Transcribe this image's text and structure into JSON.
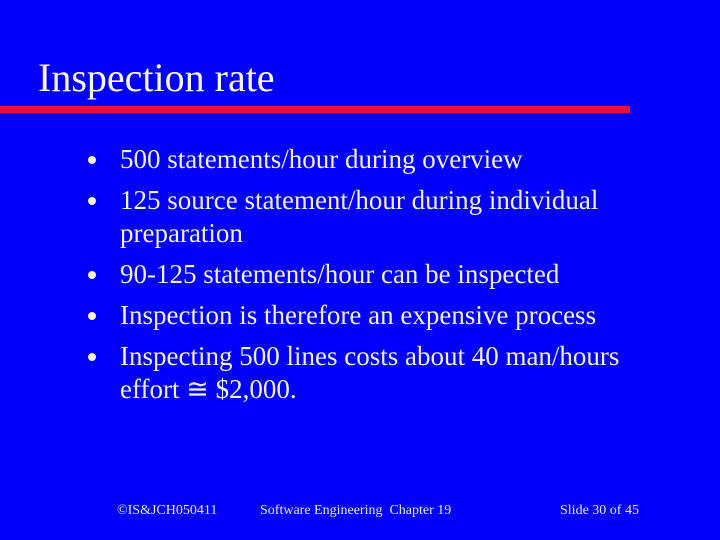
{
  "slide": {
    "title": "Inspection rate",
    "bullets": [
      {
        "lines": [
          "500 statements/hour during overview"
        ]
      },
      {
        "lines": [
          "125 source statement/hour during individual",
          "preparation"
        ]
      },
      {
        "lines": [
          "90-125 statements/hour can be inspected"
        ]
      },
      {
        "lines": [
          "Inspection is therefore an expensive process"
        ]
      },
      {
        "lines": [
          "Inspecting 500 lines costs about 40 man/hours",
          "effort ≅ $2,000."
        ]
      }
    ],
    "footer": {
      "copyright": "©IS&JCH050411",
      "course": "Software Engineering  Chapter 19",
      "slide_number": "Slide 30 of 45"
    },
    "colors": {
      "background": "#0000fb",
      "rule": "#e8103c",
      "title_text": "#faf8ee",
      "body_text": "#f2f0e2",
      "footer_text": "#e9e9d8"
    },
    "bullet_icon": "filled-circle"
  }
}
